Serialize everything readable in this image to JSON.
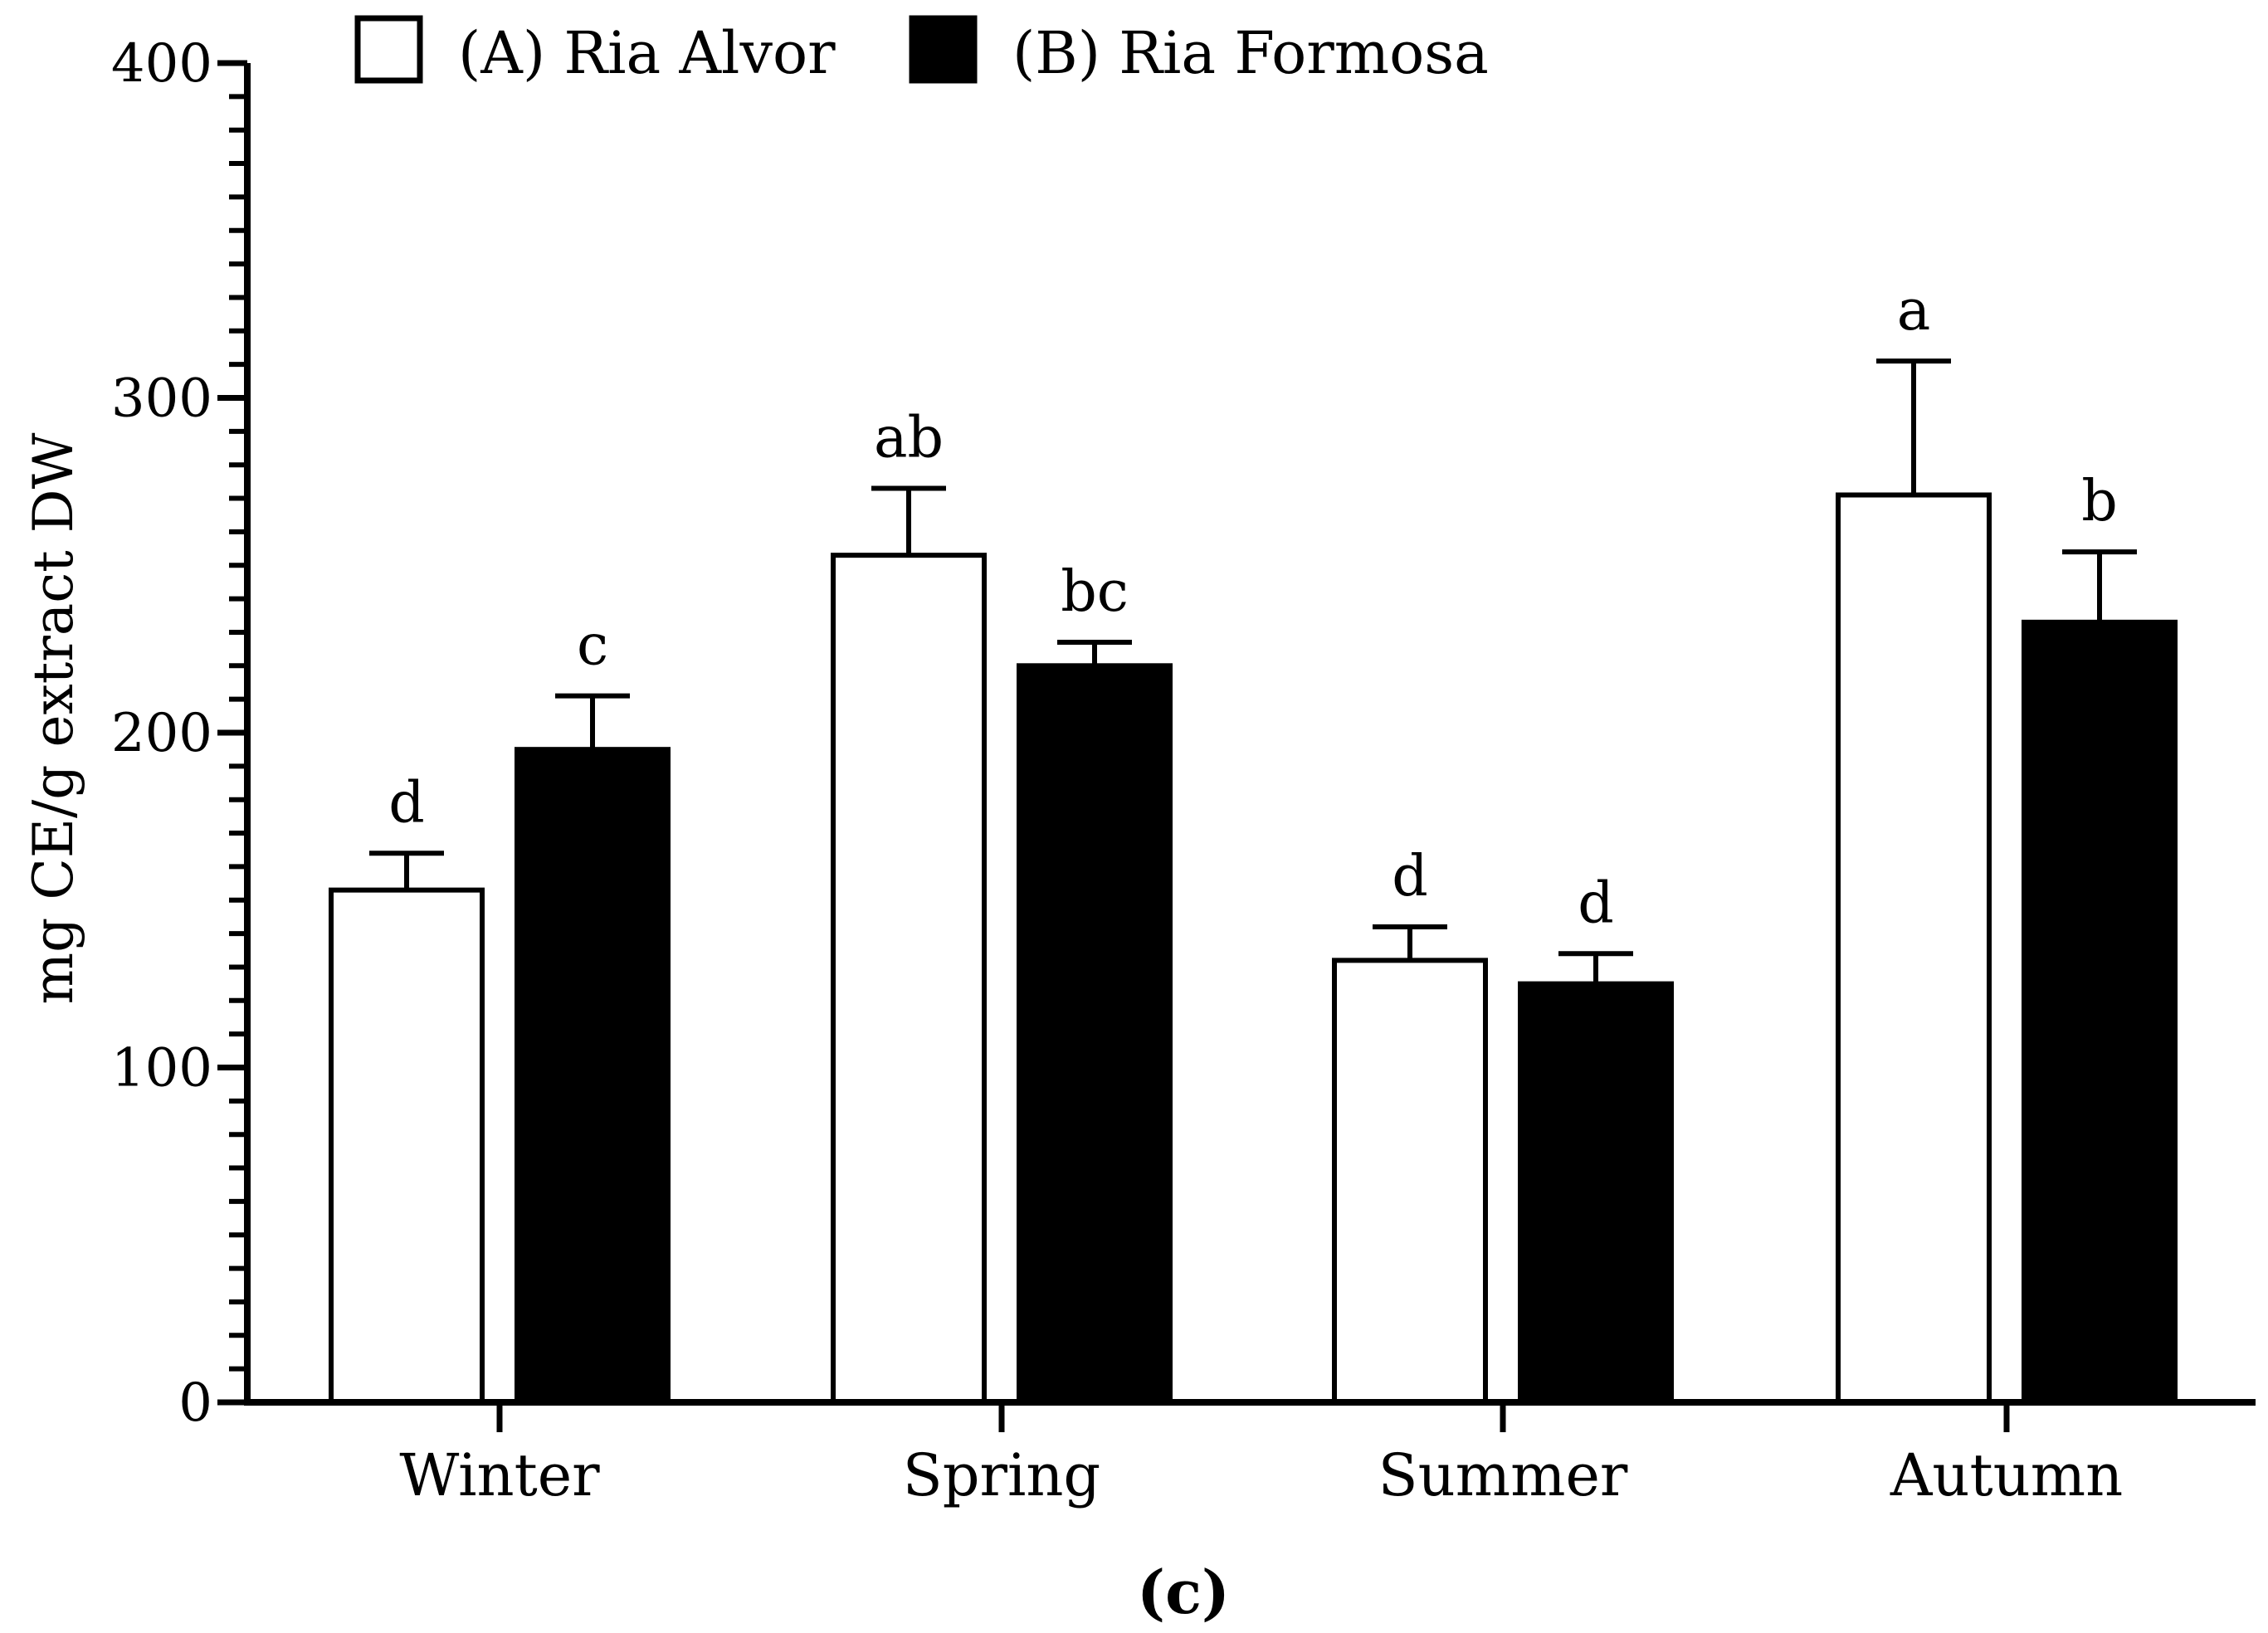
{
  "chart_data": {
    "type": "bar",
    "panel_label": "(c)",
    "ylabel": "mg CE/g extract DW",
    "xlabel": "",
    "categories": [
      "Winter",
      "Spring",
      "Summer",
      "Autumn"
    ],
    "ylim": [
      0,
      400
    ],
    "yticks": [
      0,
      100,
      200,
      300,
      400
    ],
    "minor_tick_step": 10,
    "grid": false,
    "legend_position": "top-left",
    "series": [
      {
        "name": "(A) Ria Alvor",
        "fill": "#ffffff",
        "stroke": "#000000",
        "values": [
          153,
          253,
          132,
          271
        ],
        "errors": [
          11,
          20,
          10,
          40
        ],
        "letters": [
          "d",
          "ab",
          "d",
          "a"
        ]
      },
      {
        "name": "(B) Ria Formosa",
        "fill": "#000000",
        "stroke": "#000000",
        "values": [
          195,
          220,
          125,
          233
        ],
        "errors": [
          16,
          7,
          9,
          21
        ],
        "letters": [
          "c",
          "bc",
          "d",
          "b"
        ]
      }
    ]
  }
}
